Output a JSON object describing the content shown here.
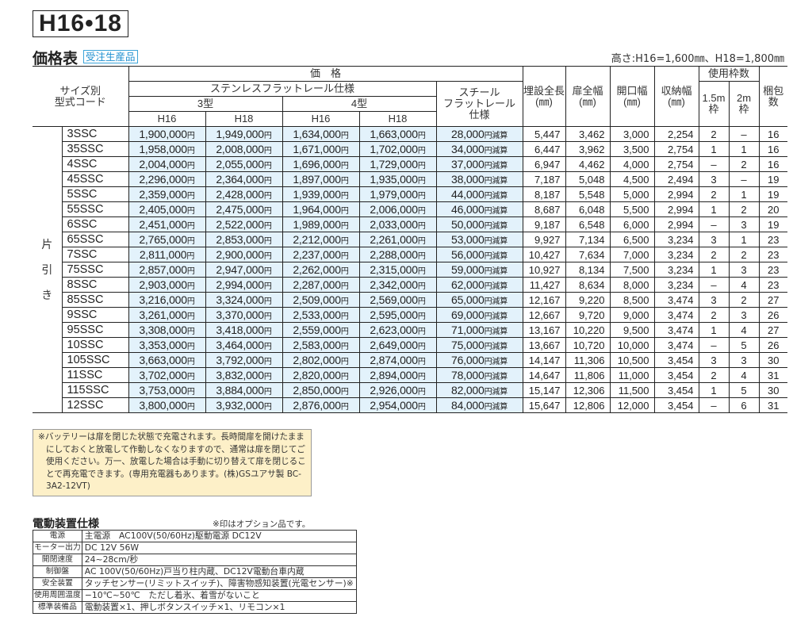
{
  "series_label": "H16•18",
  "section": {
    "title": "価格表",
    "badge": "受注生産品",
    "height_note": "高さ:H16=1,600㎜、H18=1,800㎜"
  },
  "table": {
    "headers": {
      "size_code": "サイズ別\n型式コード",
      "price": "価　格",
      "stainless": "ステンレスフラットレール仕様",
      "type3": "3型",
      "type4": "4型",
      "h16": "H16",
      "h18": "H18",
      "steel": "スチール\nフラットレール\n仕様",
      "buried_length": "埋設全長\n(㎜)",
      "door_width": "扉全幅\n(㎜)",
      "opening_width": "開口幅\n(㎜)",
      "storage_width": "収納幅\n(㎜)",
      "frames_used": "使用枠数",
      "frame_15": "1.5m\n枠",
      "frame_2": "2m\n枠",
      "packages": "梱包\n数"
    },
    "side_label": "片\n引\nき",
    "yen": "円",
    "deduct": "円減算",
    "rows": [
      {
        "code": "3SSC",
        "t3_h16": "1,900,000",
        "t3_h18": "1,949,000",
        "t4_h16": "1,634,000",
        "t4_h18": "1,663,000",
        "steel": "28,000",
        "buried": "5,447",
        "door": "3,462",
        "opening": "3,000",
        "storage": "2,254",
        "f15": "2",
        "f2": "–",
        "pkg": "16"
      },
      {
        "code": "35SSC",
        "t3_h16": "1,958,000",
        "t3_h18": "2,008,000",
        "t4_h16": "1,671,000",
        "t4_h18": "1,702,000",
        "steel": "34,000",
        "buried": "6,447",
        "door": "3,962",
        "opening": "3,500",
        "storage": "2,754",
        "f15": "1",
        "f2": "1",
        "pkg": "16"
      },
      {
        "code": "4SSC",
        "t3_h16": "2,004,000",
        "t3_h18": "2,055,000",
        "t4_h16": "1,696,000",
        "t4_h18": "1,729,000",
        "steel": "37,000",
        "buried": "6,947",
        "door": "4,462",
        "opening": "4,000",
        "storage": "2,754",
        "f15": "–",
        "f2": "2",
        "pkg": "16"
      },
      {
        "code": "45SSC",
        "t3_h16": "2,296,000",
        "t3_h18": "2,364,000",
        "t4_h16": "1,897,000",
        "t4_h18": "1,935,000",
        "steel": "38,000",
        "buried": "7,187",
        "door": "5,048",
        "opening": "4,500",
        "storage": "2,494",
        "f15": "3",
        "f2": "–",
        "pkg": "19"
      },
      {
        "code": "5SSC",
        "t3_h16": "2,359,000",
        "t3_h18": "2,428,000",
        "t4_h16": "1,939,000",
        "t4_h18": "1,979,000",
        "steel": "44,000",
        "buried": "8,187",
        "door": "5,548",
        "opening": "5,000",
        "storage": "2,994",
        "f15": "2",
        "f2": "1",
        "pkg": "19"
      },
      {
        "code": "55SSC",
        "t3_h16": "2,405,000",
        "t3_h18": "2,475,000",
        "t4_h16": "1,964,000",
        "t4_h18": "2,006,000",
        "steel": "46,000",
        "buried": "8,687",
        "door": "6,048",
        "opening": "5,500",
        "storage": "2,994",
        "f15": "1",
        "f2": "2",
        "pkg": "20"
      },
      {
        "code": "6SSC",
        "t3_h16": "2,451,000",
        "t3_h18": "2,522,000",
        "t4_h16": "1,989,000",
        "t4_h18": "2,033,000",
        "steel": "50,000",
        "buried": "9,187",
        "door": "6,548",
        "opening": "6,000",
        "storage": "2,994",
        "f15": "–",
        "f2": "3",
        "pkg": "19"
      },
      {
        "code": "65SSC",
        "t3_h16": "2,765,000",
        "t3_h18": "2,853,000",
        "t4_h16": "2,212,000",
        "t4_h18": "2,261,000",
        "steel": "53,000",
        "buried": "9,927",
        "door": "7,134",
        "opening": "6,500",
        "storage": "3,234",
        "f15": "3",
        "f2": "1",
        "pkg": "23"
      },
      {
        "code": "7SSC",
        "t3_h16": "2,811,000",
        "t3_h18": "2,900,000",
        "t4_h16": "2,237,000",
        "t4_h18": "2,288,000",
        "steel": "56,000",
        "buried": "10,427",
        "door": "7,634",
        "opening": "7,000",
        "storage": "3,234",
        "f15": "2",
        "f2": "2",
        "pkg": "23"
      },
      {
        "code": "75SSC",
        "t3_h16": "2,857,000",
        "t3_h18": "2,947,000",
        "t4_h16": "2,262,000",
        "t4_h18": "2,315,000",
        "steel": "59,000",
        "buried": "10,927",
        "door": "8,134",
        "opening": "7,500",
        "storage": "3,234",
        "f15": "1",
        "f2": "3",
        "pkg": "23"
      },
      {
        "code": "8SSC",
        "t3_h16": "2,903,000",
        "t3_h18": "2,994,000",
        "t4_h16": "2,287,000",
        "t4_h18": "2,342,000",
        "steel": "62,000",
        "buried": "11,427",
        "door": "8,634",
        "opening": "8,000",
        "storage": "3,234",
        "f15": "–",
        "f2": "4",
        "pkg": "23"
      },
      {
        "code": "85SSC",
        "t3_h16": "3,216,000",
        "t3_h18": "3,324,000",
        "t4_h16": "2,509,000",
        "t4_h18": "2,569,000",
        "steel": "65,000",
        "buried": "12,167",
        "door": "9,220",
        "opening": "8,500",
        "storage": "3,474",
        "f15": "3",
        "f2": "2",
        "pkg": "27"
      },
      {
        "code": "9SSC",
        "t3_h16": "3,261,000",
        "t3_h18": "3,370,000",
        "t4_h16": "2,533,000",
        "t4_h18": "2,595,000",
        "steel": "69,000",
        "buried": "12,667",
        "door": "9,720",
        "opening": "9,000",
        "storage": "3,474",
        "f15": "2",
        "f2": "3",
        "pkg": "26"
      },
      {
        "code": "95SSC",
        "t3_h16": "3,308,000",
        "t3_h18": "3,418,000",
        "t4_h16": "2,559,000",
        "t4_h18": "2,623,000",
        "steel": "71,000",
        "buried": "13,167",
        "door": "10,220",
        "opening": "9,500",
        "storage": "3,474",
        "f15": "1",
        "f2": "4",
        "pkg": "27"
      },
      {
        "code": "10SSC",
        "t3_h16": "3,353,000",
        "t3_h18": "3,464,000",
        "t4_h16": "2,583,000",
        "t4_h18": "2,649,000",
        "steel": "75,000",
        "buried": "13,667",
        "door": "10,720",
        "opening": "10,000",
        "storage": "3,474",
        "f15": "–",
        "f2": "5",
        "pkg": "26"
      },
      {
        "code": "105SSC",
        "t3_h16": "3,663,000",
        "t3_h18": "3,792,000",
        "t4_h16": "2,802,000",
        "t4_h18": "2,874,000",
        "steel": "76,000",
        "buried": "14,147",
        "door": "11,306",
        "opening": "10,500",
        "storage": "3,454",
        "f15": "3",
        "f2": "3",
        "pkg": "30"
      },
      {
        "code": "11SSC",
        "t3_h16": "3,702,000",
        "t3_h18": "3,832,000",
        "t4_h16": "2,820,000",
        "t4_h18": "2,894,000",
        "steel": "78,000",
        "buried": "14,647",
        "door": "11,806",
        "opening": "11,000",
        "storage": "3,454",
        "f15": "2",
        "f2": "4",
        "pkg": "31"
      },
      {
        "code": "115SSC",
        "t3_h16": "3,753,000",
        "t3_h18": "3,884,000",
        "t4_h16": "2,850,000",
        "t4_h18": "2,926,000",
        "steel": "82,000",
        "buried": "15,147",
        "door": "12,306",
        "opening": "11,500",
        "storage": "3,454",
        "f15": "1",
        "f2": "5",
        "pkg": "30"
      },
      {
        "code": "12SSC",
        "t3_h16": "3,800,000",
        "t3_h18": "3,932,000",
        "t4_h16": "2,876,000",
        "t4_h18": "2,954,000",
        "steel": "84,000",
        "buried": "15,647",
        "door": "12,806",
        "opening": "12,000",
        "storage": "3,454",
        "f15": "–",
        "f2": "6",
        "pkg": "31"
      }
    ]
  },
  "battery_note": "※バッテリーは扉を閉じた状態で充電されます。長時間扉を開けたままにしておくと放電して作動しなくなりますので、通常は扉を閉じてご使用ください。万一、放電した場合は手動に切り替えて扉を閉じることで再充電できます。(専用充電器もあります。(株)GSユアサ製 BC-3A2-12VT)",
  "spec": {
    "title": "電動装置仕様",
    "note": "※印はオプション品です。",
    "rows": [
      {
        "key": "電源",
        "value": "主電源　AC100V(50/60Hz)駆動電源 DC12V"
      },
      {
        "key": "モーター出力",
        "value": "DC 12V 56W"
      },
      {
        "key": "開閉速度",
        "value": "24~28cm/秒"
      },
      {
        "key": "制御盤",
        "value": "AC 100V(50/60Hz)戸当り柱内蔵、DC12V電動台車内蔵"
      },
      {
        "key": "安全装置",
        "value": "タッチセンサー(リミットスイッチ)、障害物感知装置(光電センサー)※"
      },
      {
        "key": "使用周囲温度",
        "value": "−10℃~50℃　ただし着氷、着雪がないこと"
      },
      {
        "key": "標準装備品",
        "value": "電動装置×1、押しボタンスイッチ×1、リモコン×1"
      }
    ]
  }
}
